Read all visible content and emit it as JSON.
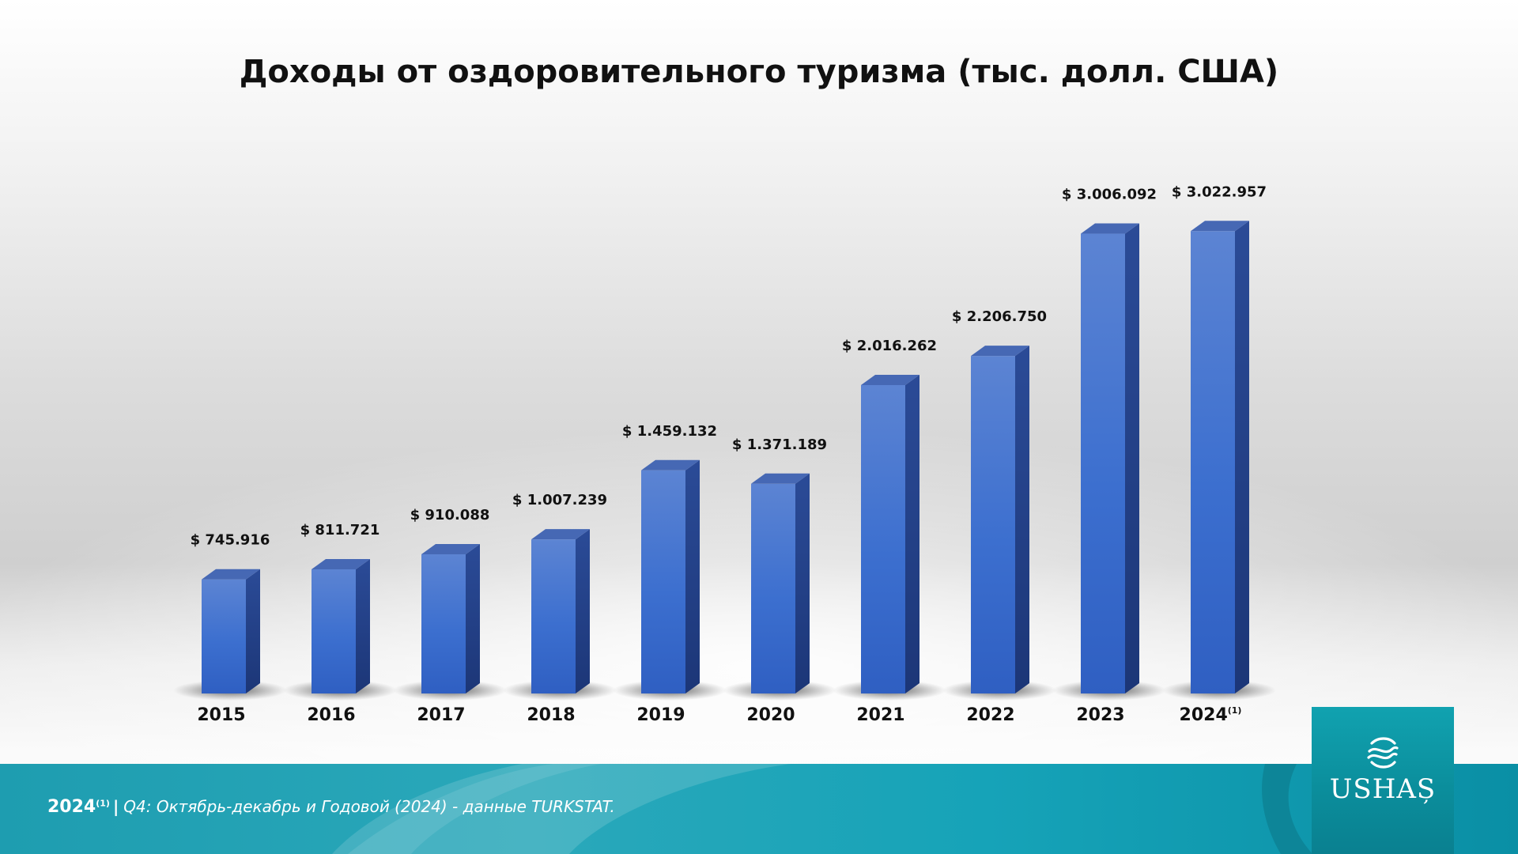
{
  "title": "Доходы от оздоровительного туризма (тыс. долл. США)",
  "chart_data": {
    "type": "bar",
    "title": "Доходы от оздоровительного туризма (тыс. долл. США)",
    "xlabel": "",
    "ylabel": "",
    "ylim": [
      0,
      3500000
    ],
    "grid": false,
    "legend": "none",
    "categories": [
      "2015",
      "2016",
      "2017",
      "2018",
      "2019",
      "2020",
      "2021",
      "2022",
      "2023",
      "2024"
    ],
    "category_superscripts": [
      "",
      "",
      "",
      "",
      "",
      "",
      "",
      "",
      "",
      "(1)"
    ],
    "values": [
      745916,
      811721,
      910088,
      1007239,
      1459132,
      1371189,
      2016262,
      2206750,
      3006092,
      3022957
    ],
    "value_labels": [
      "$ 745.916",
      "$ 811.721",
      "$ 910.088",
      "$ 1.007.239",
      "$ 1.459.132",
      "$ 1.371.189",
      "$ 2.016.262",
      "$ 2.206.750",
      "$ 3.006.092",
      "$ 3.022.957"
    ],
    "bar_color": "#3a6ccd"
  },
  "footer": {
    "year": "2024",
    "superscript": "(1)",
    "separator": "|",
    "note": "Q4: Октябрь-декабрь и Годовой (2024) - данные TURKSTAT."
  },
  "logo": {
    "text": "USHAȘ",
    "icon": "ushas-wave-icon"
  },
  "colors": {
    "bar_front": "#3a6ccd",
    "bar_side": "#223f85",
    "bar_top": "#4668b4",
    "footer": "#1e9db0",
    "logo_bg": "#0b8e9c"
  }
}
